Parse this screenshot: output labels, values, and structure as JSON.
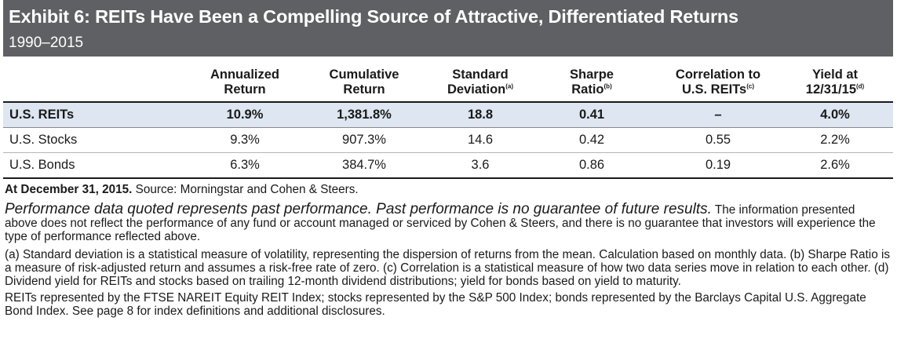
{
  "header": {
    "title": "Exhibit 6: REITs Have Been a Compelling Source of Attractive, Differentiated Returns",
    "subtitle": "1990–2015"
  },
  "columns": [
    {
      "line1": "Annualized",
      "line2": "Return",
      "sup": ""
    },
    {
      "line1": "Cumulative",
      "line2": "Return",
      "sup": ""
    },
    {
      "line1": "Standard",
      "line2": "Deviation",
      "sup": "(a)"
    },
    {
      "line1": "Sharpe",
      "line2": "Ratio",
      "sup": "(b)"
    },
    {
      "line1": "Correlation to",
      "line2": "U.S. REITs",
      "sup": "(c)"
    },
    {
      "line1": "Yield at",
      "line2": "12/31/15",
      "sup": "(d)"
    }
  ],
  "rows": [
    {
      "name": "U.S. REITs",
      "cells": [
        "10.9%",
        "1,381.8%",
        "18.8",
        "0.41",
        "–",
        "4.0%"
      ]
    },
    {
      "name": "U.S. Stocks",
      "cells": [
        "9.3%",
        "907.3%",
        "14.6",
        "0.42",
        "0.55",
        "2.2%"
      ]
    },
    {
      "name": "U.S. Bonds",
      "cells": [
        "6.3%",
        "384.7%",
        "3.6",
        "0.86",
        "0.19",
        "2.6%"
      ]
    }
  ],
  "notes": {
    "asof_bold": "At December 31, 2015.",
    "source": " Source: Morningstar and Cohen & Steers.",
    "perf_italic": "Performance data quoted represents past performance. Past performance is no guarantee of future results.",
    "perf_rest": " The information presented above does not reflect the performance of any fund or account managed or serviced by Cohen & Steers, and there is no guarantee that investors will experience the type of performance reflected above.",
    "footnotes": "(a) Standard deviation is a statistical measure of volatility, representing the dispersion of returns from the mean. Calculation based on monthly data. (b) Sharpe Ratio is a measure of risk-adjusted return and assumes a risk-free rate of zero. (c) Correlation is a statistical measure of how two data series move in relation to each other. (d) Dividend yield for REITs and stocks based on trailing 12-month dividend distributions; yield for bonds based on yield to maturity.",
    "indexes": "REITs represented by the FTSE NAREIT Equity REIT Index; stocks represented by the S&P 500 Index; bonds represented by the Barclays Capital U.S. Aggregate Bond Index. See page 8 for index definitions and additional disclosures."
  }
}
